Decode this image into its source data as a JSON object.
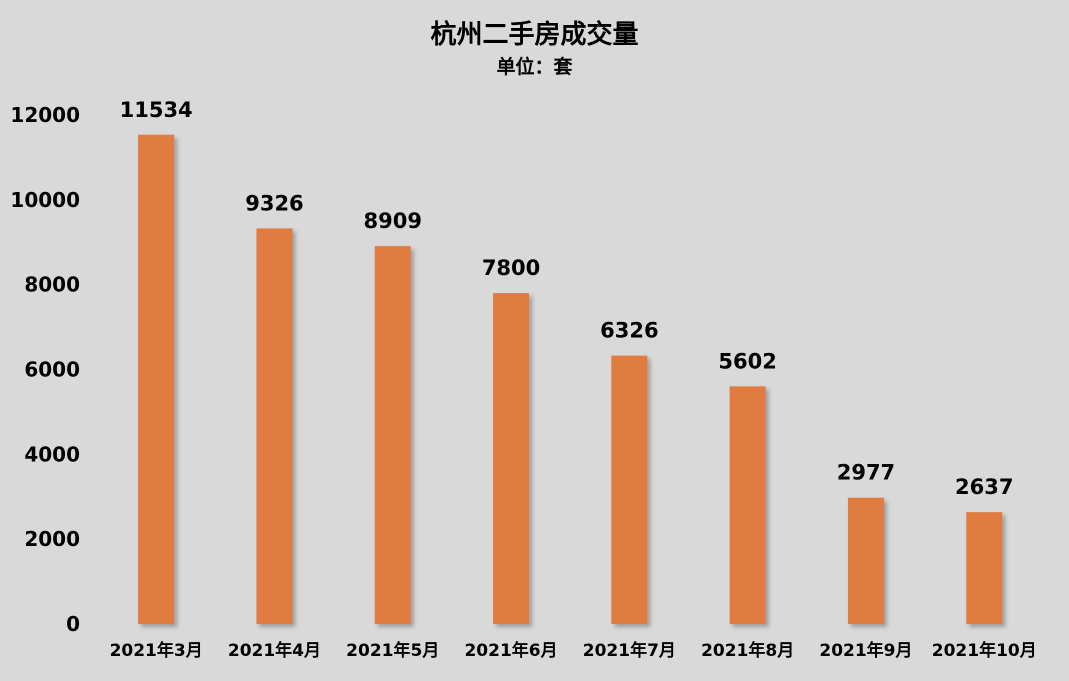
{
  "chart_data": {
    "type": "bar",
    "title": "杭州二手房成交量",
    "subtitle": "单位：套",
    "categories": [
      "2021年3月",
      "2021年4月",
      "2021年5月",
      "2021年6月",
      "2021年7月",
      "2021年8月",
      "2021年9月",
      "2021年10月"
    ],
    "values": [
      11534,
      9326,
      8909,
      7800,
      6326,
      5602,
      2977,
      2637
    ],
    "ylim": [
      0,
      12000
    ],
    "yticks": [
      0,
      2000,
      4000,
      6000,
      8000,
      10000,
      12000
    ],
    "grid": false,
    "legend": "none",
    "bar_color": "#e07b41",
    "background_color": "#d9d9d9"
  }
}
